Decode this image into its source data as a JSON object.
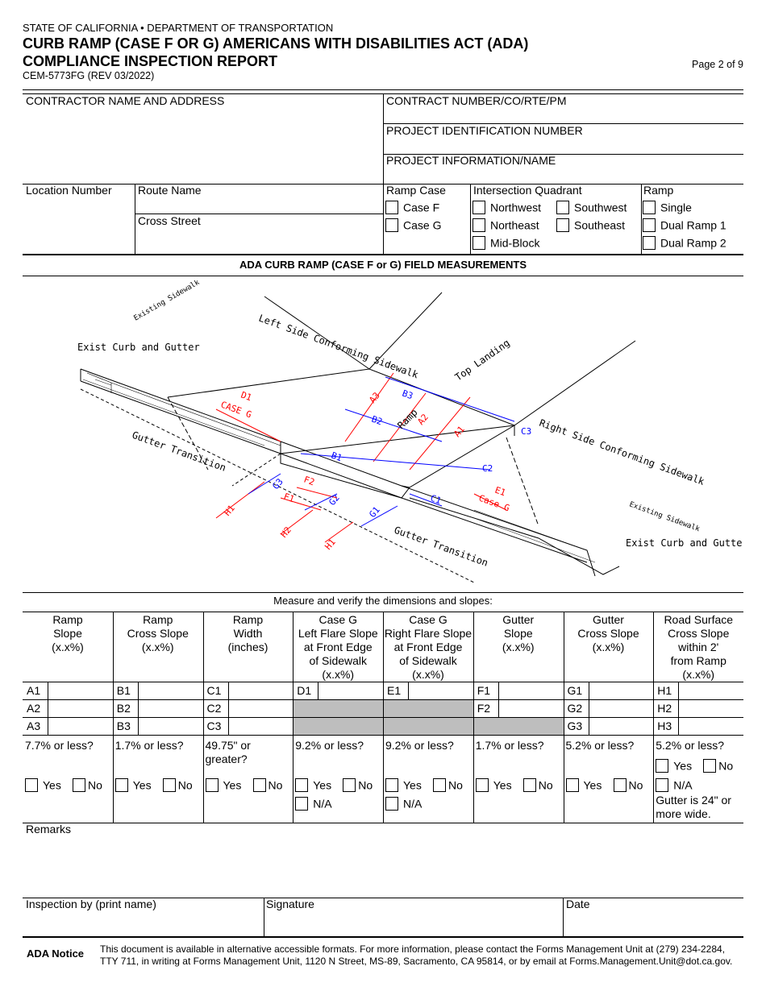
{
  "header": {
    "agency": "STATE OF CALIFORNIA • DEPARTMENT OF TRANSPORTATION",
    "title_line1": "CURB RAMP (CASE F OR G) AMERICANS WITH DISABILITIES ACT (ADA)",
    "title_line2": "COMPLIANCE INSPECTION REPORT",
    "form_number": "CEM-5773FG (REV 03/2022)",
    "page": "Page 2 of 9"
  },
  "fields": {
    "contractor": "CONTRACTOR NAME AND ADDRESS",
    "contract_number": "CONTRACT NUMBER/CO/RTE/PM",
    "project_id": "PROJECT IDENTIFICATION NUMBER",
    "project_info": "PROJECT INFORMATION/NAME",
    "location_number": "Location Number",
    "route_name": "Route Name",
    "cross_street": "Cross Street"
  },
  "ramp_case": {
    "label": "Ramp Case",
    "options": [
      "Case F",
      "Case G"
    ]
  },
  "quadrant": {
    "label": "Intersection Quadrant",
    "options": [
      "Northwest",
      "Southwest",
      "Northeast",
      "Southeast",
      "Mid-Block"
    ]
  },
  "ramp": {
    "label": "Ramp",
    "options": [
      "Single",
      "Dual Ramp 1",
      "Dual Ramp 2"
    ]
  },
  "section_title": "ADA CURB RAMP (CASE F or G) FIELD MEASUREMENTS",
  "diagram": {
    "labels": {
      "existing_sidewalk_left": "Existing Sidewalk",
      "left_conforming": "Left Side Conforming Sidewalk",
      "exist_curb_left": "Exist Curb and Gutter",
      "top_landing": "Top Landing",
      "ramp": "Ramp",
      "right_conforming": "Right Side Conforming Sidewalk",
      "gutter_transition_left": "Gutter Transition",
      "gutter_transition_right": "Gutter Transition",
      "existing_sidewalk_right": "Existing Sidewalk",
      "exist_curb_right": "Exist Curb and Gutter",
      "d1": "D1",
      "case_g_left": "CASE G",
      "e1": "E1",
      "case_g_right": "Case G",
      "a1": "A1",
      "a2": "A2",
      "a3": "A3",
      "b1": "B1",
      "b2": "B2",
      "b3": "B3",
      "c1": "C1",
      "c2": "C2",
      "c3": "C3",
      "f1": "F1",
      "f2": "F2",
      "g1": "G1",
      "g2": "G2",
      "g3": "G3",
      "h1a": "H1",
      "h2": "H2",
      "h1b": "H1"
    },
    "colors": {
      "red": "#ff0000",
      "blue": "#0000ff"
    }
  },
  "measure_caption": "Measure and verify the dimensions and slopes:",
  "table": {
    "columns": [
      {
        "header": "Ramp\nSlope\n(x.x%)",
        "rows": [
          "A1",
          "A2",
          "A3"
        ],
        "question": "7.7% or less?",
        "answers": [
          "Yes",
          "No"
        ]
      },
      {
        "header": "Ramp\nCross Slope\n(x.x%)",
        "rows": [
          "B1",
          "B2",
          "B3"
        ],
        "question": "1.7% or less?",
        "answers": [
          "Yes",
          "No"
        ]
      },
      {
        "header": "Ramp\nWidth\n(inches)",
        "rows": [
          "C1",
          "C2",
          "C3"
        ],
        "question": "49.75\" or\ngreater?",
        "answers": [
          "Yes",
          "No"
        ]
      },
      {
        "header": "Case G\nLeft Flare Slope\nat Front Edge\nof Sidewalk\n(x.x%)",
        "rows": [
          "D1"
        ],
        "question": "9.2% or less?",
        "answers": [
          "Yes",
          "No"
        ],
        "na": "N/A"
      },
      {
        "header": "Case G\nRight Flare Slope\nat Front Edge\nof Sidewalk\n(x.x%)",
        "rows": [
          "E1"
        ],
        "question": "9.2% or less?",
        "answers": [
          "Yes",
          "No"
        ],
        "na": "N/A"
      },
      {
        "header": "Gutter\nSlope\n(x.x%)",
        "rows": [
          "F1",
          "F2"
        ],
        "question": "1.7% or less?",
        "answers": [
          "Yes",
          "No"
        ]
      },
      {
        "header": "Gutter\nCross Slope\n(x.x%)",
        "rows": [
          "G1",
          "G2",
          "G3"
        ],
        "question": "5.2% or less?",
        "answers": [
          "Yes",
          "No"
        ]
      },
      {
        "header": "Road Surface\nCross Slope\nwithin 2'\nfrom Ramp\n(x.x%)",
        "rows": [
          "H1",
          "H2",
          "H3"
        ],
        "question": "5.2% or less?",
        "answers": [
          "Yes",
          "No"
        ],
        "na": "N/A",
        "note": "Gutter is 24\" or\nmore wide."
      }
    ]
  },
  "remarks": "Remarks",
  "signoff": {
    "inspector": "Inspection by (print name)",
    "signature": "Signature",
    "date": "Date"
  },
  "notice": {
    "label": "ADA Notice",
    "text_line1": "This document is available in alternative accessible formats. For more information, please contact the Forms Management Unit at (279) 234-2284,",
    "text_line2": "TTY 711, in writing at Forms Management Unit, 1120 N Street, MS-89, Sacramento, CA 95814, or by email at Forms.Management.Unit@dot.ca.gov."
  }
}
